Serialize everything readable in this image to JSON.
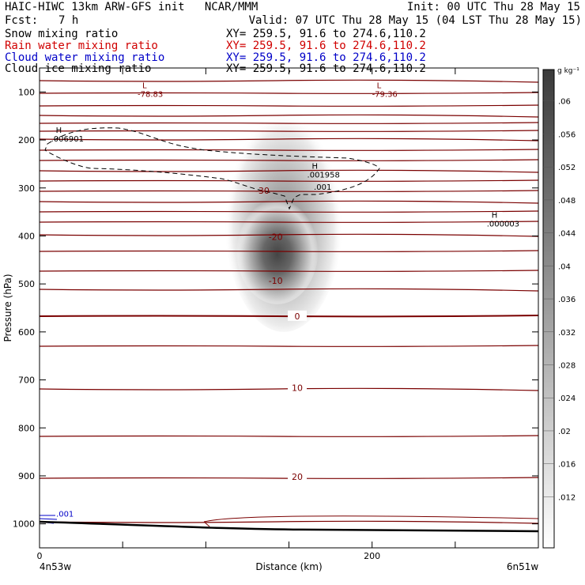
{
  "header": {
    "left1": "HAIC-HIWC 13km ARW-GFS init   NCAR/MMM",
    "init": "Init: 00 UTC Thu 28 May 15",
    "fcst_label": "Fcst:",
    "fcst_value": "7 h",
    "valid": "Valid: 07 UTC Thu 28 May 15 (04 LST Thu 28 May 15)",
    "fields": [
      {
        "label": "Snow mixing ratio",
        "xy": "XY= 259.5, 91.6 to 274.6,110.2",
        "color": "#000000"
      },
      {
        "label": "Rain water mixing ratio",
        "xy": "XY= 259.5, 91.6 to 274.6,110.2",
        "color": "#d00000"
      },
      {
        "label": "Cloud water mixing ratio",
        "xy": "XY= 259.5, 91.6 to 274.6,110.2",
        "color": "#0000c8"
      },
      {
        "label": "Cloud ice mixing ratio",
        "xy": "XY= 259.5, 91.6 to 274.6,110.2",
        "color": "#000000"
      }
    ]
  },
  "chart_data": {
    "type": "heatmap",
    "ylabel": "Pressure (hPa)",
    "xlabel": "Distance (km)",
    "x_tick_labels": [
      "0",
      "200"
    ],
    "y_tick_labels": [
      "100",
      "200",
      "300",
      "400",
      "500",
      "600",
      "700",
      "800",
      "900",
      "1000"
    ],
    "ylim": [
      1050,
      50
    ],
    "xlim": [
      0,
      300
    ],
    "left_endpoint": "4n53w",
    "right_endpoint": "6n51w",
    "colorbar_unit": "g kg⁻¹",
    "colorbar_labels": [
      ".06",
      ".056",
      ".052",
      ".048",
      ".044",
      ".04",
      ".036",
      ".032",
      ".028",
      ".024",
      ".02",
      ".016",
      ".012"
    ],
    "temperature_labels": [
      {
        "text": "-30",
        "x": 134,
        "p": 305
      },
      {
        "text": "-20",
        "x": 142,
        "p": 402
      },
      {
        "text": "-10",
        "x": 142,
        "p": 493
      },
      {
        "text": "0",
        "x": 155,
        "p": 567
      },
      {
        "text": "10",
        "x": 155,
        "p": 716
      },
      {
        "text": "20",
        "x": 155,
        "p": 902
      }
    ],
    "extrema": [
      {
        "type": "L",
        "value": "-78.83",
        "x": 58,
        "p": 92
      },
      {
        "type": "L",
        "value": "-79.36",
        "x": 199,
        "p": 92
      },
      {
        "type": "H",
        "value": ".006901",
        "x": 6,
        "p": 185
      },
      {
        "type": "H",
        "value": ".001958",
        "x": 160,
        "p": 260
      },
      {
        "type": "H",
        "value": ".000003",
        "x": 268,
        "p": 362
      }
    ],
    "contour_labels": [
      {
        "text": ".001",
        "x": 165,
        "p": 304,
        "color": "#000000"
      },
      {
        "text": ".001",
        "x": 10,
        "p": 985,
        "color": "#0000c8"
      }
    ],
    "snow_core": {
      "x": 143,
      "p": 460,
      "max": 0.06
    }
  }
}
